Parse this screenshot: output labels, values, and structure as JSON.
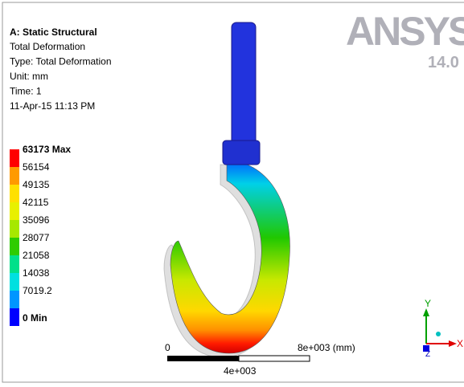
{
  "header": {
    "title": "A: Static Structural",
    "lines": [
      "Total Deformation",
      "Type: Total Deformation",
      "Unit: mm",
      "Time: 1",
      "11-Apr-15 11:13 PM"
    ]
  },
  "legend": {
    "items": [
      {
        "label": "63173 Max",
        "color": "#ff0000"
      },
      {
        "label": "56154",
        "color": "#ff9a00"
      },
      {
        "label": "49135",
        "color": "#ffe000"
      },
      {
        "label": "42115",
        "color": "#e8f000"
      },
      {
        "label": "35096",
        "color": "#a6e800"
      },
      {
        "label": "28077",
        "color": "#2ecc00"
      },
      {
        "label": "21058",
        "color": "#00e08a"
      },
      {
        "label": "14038",
        "color": "#00e0e0"
      },
      {
        "label": "7019.2",
        "color": "#0096ff"
      },
      {
        "label": "0 Min",
        "color": "#0000ff"
      }
    ]
  },
  "scale_bar": {
    "start": "0",
    "end": "8e+003 (mm)",
    "middle": "4e+003"
  },
  "logo": {
    "name": "ANSYS",
    "version": "14.0"
  },
  "triad": {
    "y": "Y",
    "x": "X",
    "z": "Z"
  }
}
